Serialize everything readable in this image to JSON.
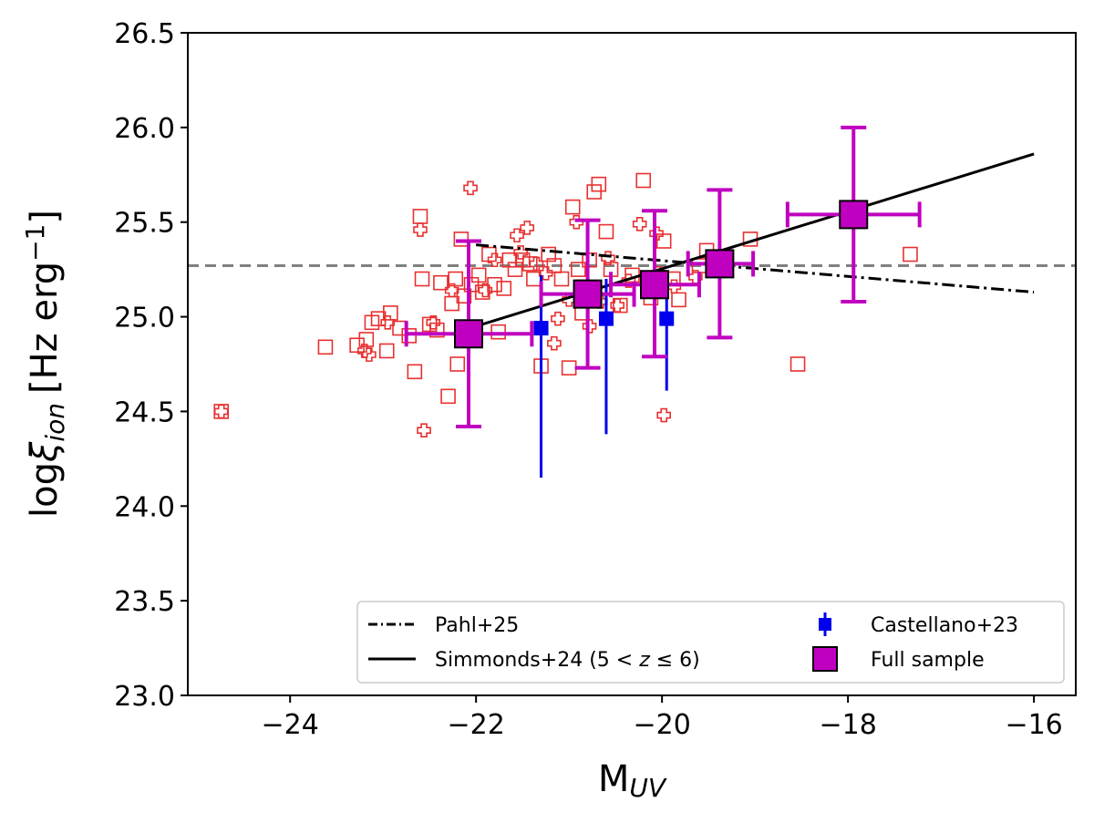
{
  "chart_data": {
    "type": "scatter",
    "xlabel": "M",
    "xlabel_sub": "UV",
    "ylabel_prefix": "log",
    "ylabel_xi": "ξ",
    "ylabel_sub": "ion",
    "ylabel_unit": "[Hz erg",
    "ylabel_unit_sup": "−1",
    "ylabel_close": "]",
    "xlim": [
      -25.1,
      -15.55
    ],
    "ylim": [
      23.0,
      26.5
    ],
    "xticks": [
      -24,
      -22,
      -20,
      -18,
      -16
    ],
    "xtick_labels": [
      "−24",
      "−22",
      "−20",
      "−18",
      "−16"
    ],
    "yticks": [
      23.0,
      23.5,
      24.0,
      24.5,
      25.0,
      25.5,
      26.0,
      26.5
    ],
    "ytick_labels": [
      "23.0",
      "23.5",
      "24.0",
      "24.5",
      "25.0",
      "25.5",
      "26.0",
      "26.5"
    ],
    "grid": false,
    "legend_position": "lower-right",
    "reference_line": {
      "y": 25.27,
      "style": "dashed",
      "color": "#808080"
    },
    "lines": [
      {
        "name": "Pahl+25",
        "style": "dashdot",
        "color": "#000000",
        "x": [
          -22.0,
          -16.0
        ],
        "y": [
          25.38,
          25.13
        ]
      },
      {
        "name": "Simmonds+24 (5 < z ≤ 6)",
        "name_parts": [
          "Simmonds+24 (5 < ",
          "z",
          " ≤ 6)"
        ],
        "style": "solid",
        "color": "#000000",
        "x": [
          -22.0,
          -16.0
        ],
        "y": [
          24.95,
          25.86
        ]
      }
    ],
    "castellano": {
      "name": "Castellano+23",
      "color": "#0000ee",
      "points": [
        {
          "x": -21.3,
          "y": 24.94,
          "ylo": 24.15,
          "yhi": 25.22
        },
        {
          "x": -20.6,
          "y": 24.99,
          "ylo": 24.38,
          "yhi": 25.2
        },
        {
          "x": -19.95,
          "y": 24.99,
          "ylo": 24.61,
          "yhi": 25.21
        }
      ]
    },
    "full_sample": {
      "name": "Full sample",
      "color": "#c000c0",
      "points": [
        {
          "x": -22.08,
          "y": 24.91,
          "xlo": -22.75,
          "xhi": -21.4,
          "ylo": 24.42,
          "yhi": 25.4
        },
        {
          "x": -20.8,
          "y": 25.12,
          "xlo": -21.3,
          "xhi": -20.3,
          "ylo": 24.73,
          "yhi": 25.51
        },
        {
          "x": -20.08,
          "y": 25.17,
          "xlo": -20.55,
          "xhi": -19.6,
          "ylo": 24.79,
          "yhi": 25.56
        },
        {
          "x": -19.38,
          "y": 25.28,
          "xlo": -19.72,
          "xhi": -19.02,
          "ylo": 24.89,
          "yhi": 25.67
        },
        {
          "x": -17.94,
          "y": 25.54,
          "xlo": -18.65,
          "xhi": -17.23,
          "ylo": 25.08,
          "yhi": 26.0
        }
      ]
    },
    "individual_squares": {
      "color": "#e83030",
      "points": [
        [
          -24.74,
          24.5
        ],
        [
          -23.62,
          24.84
        ],
        [
          -23.28,
          24.85
        ],
        [
          -23.18,
          24.88
        ],
        [
          -23.12,
          24.97
        ],
        [
          -23.05,
          24.99
        ],
        [
          -22.96,
          24.82
        ],
        [
          -22.92,
          25.02
        ],
        [
          -22.82,
          24.94
        ],
        [
          -22.72,
          24.9
        ],
        [
          -22.66,
          24.71
        ],
        [
          -22.6,
          25.53
        ],
        [
          -22.58,
          25.2
        ],
        [
          -22.5,
          24.96
        ],
        [
          -22.42,
          24.93
        ],
        [
          -22.38,
          25.18
        ],
        [
          -22.3,
          24.58
        ],
        [
          -22.26,
          25.07
        ],
        [
          -22.22,
          25.2
        ],
        [
          -22.2,
          24.75
        ],
        [
          -22.16,
          25.41
        ],
        [
          -22.13,
          25.11
        ],
        [
          -22.05,
          25.17
        ],
        [
          -21.97,
          25.22
        ],
        [
          -21.93,
          25.13
        ],
        [
          -21.86,
          25.33
        ],
        [
          -21.8,
          25.17
        ],
        [
          -21.76,
          24.92
        ],
        [
          -21.7,
          25.15
        ],
        [
          -21.64,
          25.3
        ],
        [
          -21.58,
          25.25
        ],
        [
          -21.5,
          25.3
        ],
        [
          -21.42,
          25.28
        ],
        [
          -21.38,
          25.2
        ],
        [
          -21.3,
          24.74
        ],
        [
          -21.22,
          25.33
        ],
        [
          -21.16,
          25.27
        ],
        [
          -21.08,
          25.2
        ],
        [
          -21.0,
          24.73
        ],
        [
          -20.96,
          25.58
        ],
        [
          -20.9,
          25.25
        ],
        [
          -20.86,
          25.02
        ],
        [
          -20.78,
          25.3
        ],
        [
          -20.73,
          25.66
        ],
        [
          -20.68,
          25.7
        ],
        [
          -20.6,
          25.45
        ],
        [
          -20.55,
          25.25
        ],
        [
          -20.45,
          25.06
        ],
        [
          -20.32,
          25.22
        ],
        [
          -20.2,
          25.72
        ],
        [
          -20.12,
          25.1
        ],
        [
          -20.05,
          25.15
        ],
        [
          -19.98,
          25.4
        ],
        [
          -19.88,
          25.2
        ],
        [
          -19.82,
          25.09
        ],
        [
          -19.6,
          25.27
        ],
        [
          -19.52,
          25.35
        ],
        [
          -19.05,
          25.41
        ],
        [
          -18.54,
          24.75
        ],
        [
          -17.33,
          25.33
        ]
      ]
    },
    "individual_crosses": {
      "color": "#e83030",
      "points": [
        [
          -24.74,
          24.5
        ],
        [
          -23.2,
          24.82
        ],
        [
          -23.15,
          24.8
        ],
        [
          -22.95,
          24.97
        ],
        [
          -22.6,
          25.46
        ],
        [
          -22.56,
          24.4
        ],
        [
          -22.46,
          24.97
        ],
        [
          -22.26,
          25.14
        ],
        [
          -22.06,
          25.68
        ],
        [
          -21.9,
          25.14
        ],
        [
          -21.8,
          25.3
        ],
        [
          -21.56,
          25.43
        ],
        [
          -21.52,
          25.34
        ],
        [
          -21.45,
          25.47
        ],
        [
          -21.35,
          25.28
        ],
        [
          -21.25,
          25.23
        ],
        [
          -21.16,
          24.86
        ],
        [
          -21.12,
          24.99
        ],
        [
          -21.0,
          25.09
        ],
        [
          -20.92,
          25.5
        ],
        [
          -20.88,
          25.16
        ],
        [
          -20.78,
          24.95
        ],
        [
          -20.66,
          25.08
        ],
        [
          -20.58,
          25.31
        ],
        [
          -20.48,
          25.06
        ],
        [
          -20.36,
          25.19
        ],
        [
          -20.24,
          25.49
        ],
        [
          -20.06,
          25.44
        ],
        [
          -20.04,
          25.23
        ],
        [
          -19.98,
          24.48
        ],
        [
          -19.87,
          25.16
        ],
        [
          -19.64,
          25.21
        ]
      ]
    },
    "legend": {
      "entries": [
        "Pahl+25",
        "Simmonds+24 (5 < z ≤ 6)",
        "Castellano+23",
        "Full sample"
      ]
    }
  }
}
